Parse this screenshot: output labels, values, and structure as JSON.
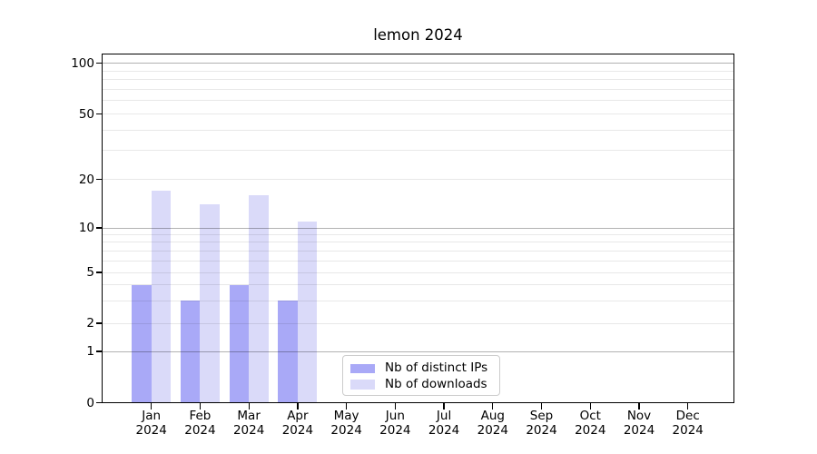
{
  "title": "lemon 2024",
  "chart_data": {
    "type": "bar",
    "title": "lemon 2024",
    "categories": [
      "Jan",
      "Feb",
      "Mar",
      "Apr",
      "May",
      "Jun",
      "Jul",
      "Aug",
      "Sep",
      "Oct",
      "Nov",
      "Dec"
    ],
    "category_year": "2024",
    "series": [
      {
        "name": "Nb of distinct IPs",
        "color": "#a9a9f7",
        "values": [
          4,
          3,
          4,
          3,
          null,
          null,
          null,
          null,
          null,
          null,
          null,
          null
        ]
      },
      {
        "name": "Nb of downloads",
        "color": "#dadaf9",
        "values": [
          17,
          14,
          16,
          11,
          null,
          null,
          null,
          null,
          null,
          null,
          null,
          null
        ]
      }
    ],
    "yaxis": {
      "scale": "symlog",
      "tick_values": [
        0,
        1,
        2,
        5,
        10,
        20,
        50,
        100
      ],
      "major_grid_values": [
        1,
        10,
        100
      ],
      "minor_grid_values": [
        2,
        3,
        4,
        5,
        6,
        7,
        8,
        9,
        20,
        30,
        40,
        50,
        60,
        70,
        80,
        90
      ],
      "range": [
        0,
        113
      ],
      "grid": true
    },
    "xlabel": "",
    "ylabel": "",
    "legend": {
      "position": "bottom-center-inside",
      "labels": [
        "Nb of distinct IPs",
        "Nb of downloads"
      ]
    }
  },
  "colors": {
    "background": "#ffffff",
    "spine": "#000000",
    "major_grid": "#b5b5b5",
    "minor_grid": "#e9e9e9",
    "bar_distinct_ips": "#a9a9f7",
    "bar_downloads": "#dadaf9",
    "legend_border": "#cccccc",
    "text": "#000000"
  }
}
